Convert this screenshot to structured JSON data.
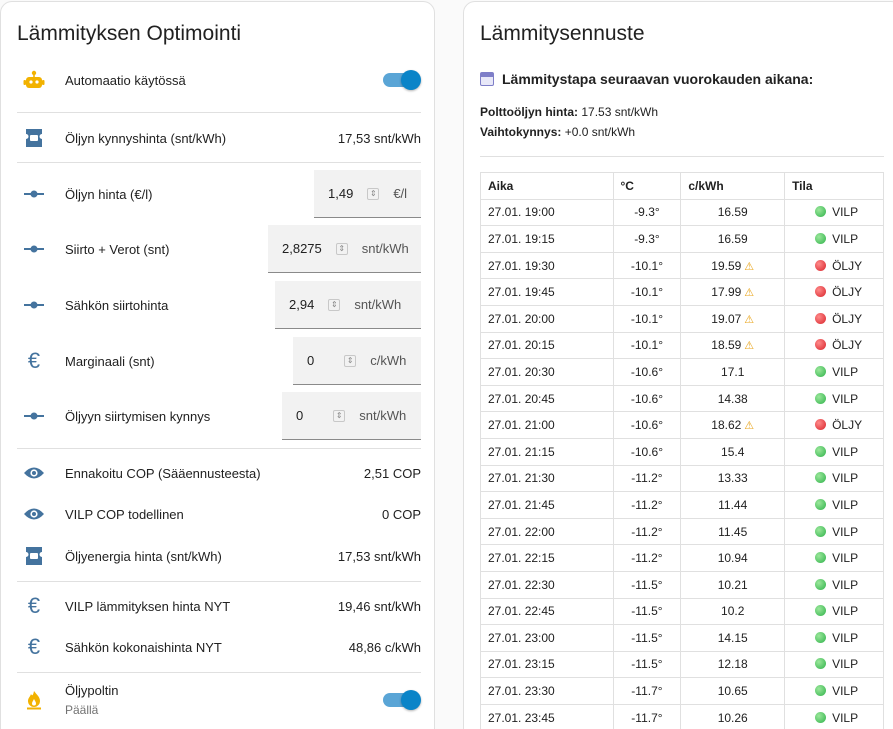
{
  "left": {
    "title": "Lämmityksen Optimointi",
    "automation": {
      "label": "Automaatio käytössä",
      "icon": "robot-icon",
      "on": true
    },
    "oil_threshold_price": {
      "label": "Öljyn kynnyshinta (snt/kWh)",
      "value": "17,53 snt/kWh",
      "icon": "ticket-icon"
    },
    "oil_price": {
      "label": "Öljyn hinta (€/l)",
      "value": "1,49",
      "unit": "€/l",
      "icon": "slider-icon"
    },
    "transfer_taxes": {
      "label": "Siirto + Verot (snt)",
      "value": "2,8275",
      "unit": "snt/kWh",
      "icon": "slider-icon"
    },
    "electricity_transfer": {
      "label": "Sähkön siirtohinta",
      "value": "2,94",
      "unit": "snt/kWh",
      "icon": "slider-icon"
    },
    "margin": {
      "label": "Marginaali (snt)",
      "value": "0",
      "unit": "c/kWh",
      "icon": "euro-icon"
    },
    "oil_switch_threshold": {
      "label": "Öljyyn siirtymisen kynnys",
      "value": "0",
      "unit": "snt/kWh",
      "icon": "slider-icon"
    },
    "predicted_cop": {
      "label": "Ennakoitu COP (Sääennusteesta)",
      "value": "2,51 COP",
      "icon": "eye-icon"
    },
    "actual_cop": {
      "label": "VILP COP todellinen",
      "value": "0 COP",
      "icon": "eye-icon"
    },
    "oil_energy_price": {
      "label": "Öljyenergia hinta (snt/kWh)",
      "value": "17,53 snt/kWh",
      "icon": "ticket-icon"
    },
    "vilp_heating_price": {
      "label": "VILP lämmityksen hinta NYT",
      "value": "19,46 snt/kWh",
      "icon": "euro-icon"
    },
    "electricity_total": {
      "label": "Sähkön kokonaishinta NYT",
      "value": "48,86 c/kWh",
      "icon": "euro-icon"
    },
    "oil_burner": {
      "label": "Öljypoltin",
      "state": "Päällä",
      "icon": "flame-icon",
      "on": true
    }
  },
  "right": {
    "title": "Lämmitysennuste",
    "subtitle": "Lämmitystapa seuraavan vuorokauden aikana:",
    "oil_price_label": "Polttoöljyn hinta:",
    "oil_price_value": "17.53 snt/kWh",
    "switch_threshold_label": "Vaihtokynnys:",
    "switch_threshold_value": "+0.0 snt/kWh",
    "columns": [
      "Aika",
      "°C",
      "c/kWh",
      "Tila"
    ],
    "rows": [
      {
        "time": "27.01. 19:00",
        "temp": "-9.3°",
        "price": "16.59",
        "warn": false,
        "state": "VILP"
      },
      {
        "time": "27.01. 19:15",
        "temp": "-9.3°",
        "price": "16.59",
        "warn": false,
        "state": "VILP"
      },
      {
        "time": "27.01. 19:30",
        "temp": "-10.1°",
        "price": "19.59",
        "warn": true,
        "state": "ÖLJY"
      },
      {
        "time": "27.01. 19:45",
        "temp": "-10.1°",
        "price": "17.99",
        "warn": true,
        "state": "ÖLJY"
      },
      {
        "time": "27.01. 20:00",
        "temp": "-10.1°",
        "price": "19.07",
        "warn": true,
        "state": "ÖLJY"
      },
      {
        "time": "27.01. 20:15",
        "temp": "-10.1°",
        "price": "18.59",
        "warn": true,
        "state": "ÖLJY"
      },
      {
        "time": "27.01. 20:30",
        "temp": "-10.6°",
        "price": "17.1",
        "warn": false,
        "state": "VILP"
      },
      {
        "time": "27.01. 20:45",
        "temp": "-10.6°",
        "price": "14.38",
        "warn": false,
        "state": "VILP"
      },
      {
        "time": "27.01. 21:00",
        "temp": "-10.6°",
        "price": "18.62",
        "warn": true,
        "state": "ÖLJY"
      },
      {
        "time": "27.01. 21:15",
        "temp": "-10.6°",
        "price": "15.4",
        "warn": false,
        "state": "VILP"
      },
      {
        "time": "27.01. 21:30",
        "temp": "-11.2°",
        "price": "13.33",
        "warn": false,
        "state": "VILP"
      },
      {
        "time": "27.01. 21:45",
        "temp": "-11.2°",
        "price": "11.44",
        "warn": false,
        "state": "VILP"
      },
      {
        "time": "27.01. 22:00",
        "temp": "-11.2°",
        "price": "11.45",
        "warn": false,
        "state": "VILP"
      },
      {
        "time": "27.01. 22:15",
        "temp": "-11.2°",
        "price": "10.94",
        "warn": false,
        "state": "VILP"
      },
      {
        "time": "27.01. 22:30",
        "temp": "-11.5°",
        "price": "10.21",
        "warn": false,
        "state": "VILP"
      },
      {
        "time": "27.01. 22:45",
        "temp": "-11.5°",
        "price": "10.2",
        "warn": false,
        "state": "VILP"
      },
      {
        "time": "27.01. 23:00",
        "temp": "-11.5°",
        "price": "14.15",
        "warn": false,
        "state": "VILP"
      },
      {
        "time": "27.01. 23:15",
        "temp": "-11.5°",
        "price": "12.18",
        "warn": false,
        "state": "VILP"
      },
      {
        "time": "27.01. 23:30",
        "temp": "-11.7°",
        "price": "10.65",
        "warn": false,
        "state": "VILP"
      },
      {
        "time": "27.01. 23:45",
        "temp": "-11.7°",
        "price": "10.26",
        "warn": false,
        "state": "VILP"
      }
    ]
  },
  "colors": {
    "icon_blue": "#44739e",
    "toggle_on": "#0a84c8",
    "state_vilp": "#2fb24a",
    "state_oil": "#d8232a",
    "warning": "#e8a317"
  }
}
